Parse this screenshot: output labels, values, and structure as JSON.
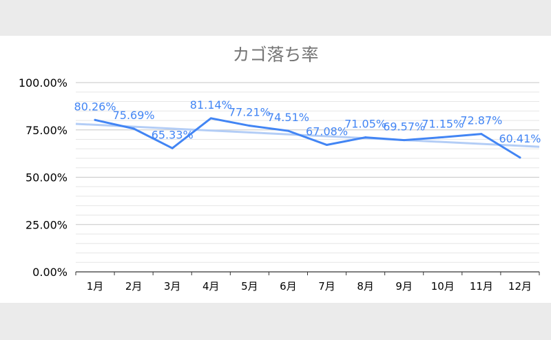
{
  "chart_data": {
    "type": "line",
    "title": "カゴ落ち率",
    "categories": [
      "1月",
      "2月",
      "3月",
      "4月",
      "5月",
      "6月",
      "7月",
      "8月",
      "9月",
      "10月",
      "11月",
      "12月"
    ],
    "series": [
      {
        "values": [
          80.26,
          75.69,
          65.33,
          81.14,
          77.21,
          74.51,
          67.08,
          71.05,
          69.57,
          71.15,
          72.87,
          60.41
        ],
        "labels": [
          "80.26%",
          "75.69%",
          "65.33%",
          "81.14%",
          "77.21%",
          "74.51%",
          "67.08%",
          "71.05%",
          "69.57%",
          "71.15%",
          "72.87%",
          "60.41%"
        ]
      }
    ],
    "trendline": {
      "type": "linear",
      "start": 78.2,
      "end": 66.1
    },
    "ylim": [
      0,
      100
    ],
    "yticks": [
      0,
      25,
      50,
      75,
      100
    ],
    "ytick_labels": [
      "0.00%",
      "25.00%",
      "50.00%",
      "75.00%",
      "100.00%"
    ],
    "minor_grid_step": 5,
    "grid": true,
    "legend": "none",
    "colors": {
      "line": "#4285f4",
      "trend": "#b3cdf6",
      "label": "#4285f4",
      "grid_major": "#c6c6c6",
      "grid_minor": "#e6e6e6"
    }
  }
}
